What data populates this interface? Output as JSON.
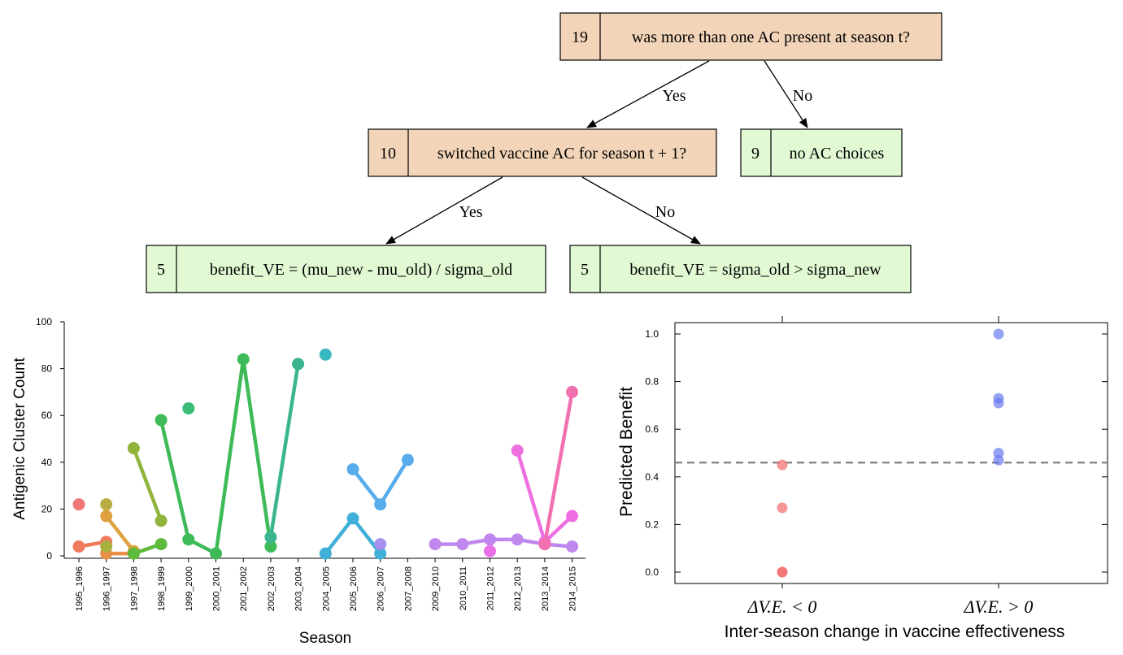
{
  "tree": {
    "root": {
      "count": "19",
      "text": "was more than one AC present at season t?",
      "fill": "#f2d4b8"
    },
    "switched": {
      "count": "10",
      "text": "switched vaccine AC for season t + 1?",
      "fill": "#f2d4b8"
    },
    "no_choices": {
      "count": "9",
      "text": "no AC choices",
      "fill": "#e2fad4"
    },
    "leaf_yes": {
      "count": "5",
      "text": "benefit_VE = (mu_new - mu_old) / sigma_old",
      "fill": "#e2fad4"
    },
    "leaf_no": {
      "count": "5",
      "text": "benefit_VE = sigma_old > sigma_new",
      "fill": "#e2fad4"
    },
    "edge_labels": {
      "yes1": "Yes",
      "no1": "No",
      "yes2": "Yes",
      "no2": "No"
    }
  },
  "chart_data": [
    {
      "type": "line",
      "xlabel": "Season",
      "ylabel": "Antigenic Cluster Count",
      "ylim": [
        0,
        100
      ],
      "yticks": [
        0,
        20,
        40,
        60,
        80,
        100
      ],
      "categories": [
        "1995_1996",
        "1996_1997",
        "1997_1998",
        "1998_1999",
        "1999_2000",
        "2000_2001",
        "2001_2002",
        "2002_2003",
        "2003_2004",
        "2004_2005",
        "2005_2006",
        "2006_2007",
        "2007_2008",
        "2009_2010",
        "2010_2011",
        "2011_2012",
        "2012_2013",
        "2013_2014",
        "2014_2015"
      ],
      "series": [
        {
          "color": "#f07878",
          "points": [
            [
              0,
              22
            ]
          ]
        },
        {
          "color": "#f07a5c",
          "points": [
            [
              0,
              4
            ],
            [
              1,
              6
            ]
          ]
        },
        {
          "color": "#e8904a",
          "points": [
            [
              1,
              1
            ],
            [
              2,
              1
            ]
          ]
        },
        {
          "color": "#dfa040",
          "points": [
            [
              1,
              17
            ],
            [
              2,
              2
            ]
          ]
        },
        {
          "color": "#b8ad40",
          "points": [
            [
              1,
              22
            ]
          ]
        },
        {
          "color": "#a8b040",
          "points": [
            [
              1,
              4
            ]
          ]
        },
        {
          "color": "#90b43c",
          "points": [
            [
              2,
              46
            ],
            [
              3,
              15
            ]
          ]
        },
        {
          "color": "#5cba3c",
          "points": [
            [
              2,
              1
            ],
            [
              3,
              5
            ]
          ]
        },
        {
          "color": "#3ebb58",
          "points": [
            [
              3,
              58
            ],
            [
              4,
              7
            ],
            [
              5,
              1
            ],
            [
              6,
              84
            ],
            [
              7,
              4
            ]
          ]
        },
        {
          "color": "#3abb78",
          "points": [
            [
              4,
              63
            ]
          ]
        },
        {
          "color": "#3ab590",
          "points": [
            [
              7,
              8
            ],
            [
              8,
              82
            ]
          ]
        },
        {
          "color": "#3ab8c0",
          "points": [
            [
              9,
              86
            ]
          ]
        },
        {
          "color": "#40b0d8",
          "points": [
            [
              9,
              1
            ],
            [
              10,
              16
            ],
            [
              11,
              1
            ]
          ]
        },
        {
          "color": "#58acec",
          "points": [
            [
              10,
              37
            ],
            [
              11,
              22
            ],
            [
              12,
              41
            ]
          ]
        },
        {
          "color": "#a890ee",
          "points": [
            [
              11,
              5
            ]
          ]
        },
        {
          "color": "#c088ee",
          "points": [
            [
              13,
              5
            ],
            [
              14,
              5
            ],
            [
              15,
              7
            ],
            [
              16,
              7
            ],
            [
              17,
              5
            ],
            [
              18,
              4
            ]
          ]
        },
        {
          "color": "#ea70ea",
          "points": [
            [
              15,
              2
            ]
          ]
        },
        {
          "color": "#ee70e0",
          "points": [
            [
              16,
              45
            ],
            [
              17,
              6
            ],
            [
              18,
              17
            ]
          ]
        },
        {
          "color": "#f070b0",
          "points": [
            [
              17,
              5
            ],
            [
              18,
              70
            ]
          ]
        }
      ]
    },
    {
      "type": "scatter",
      "xlabel": "Inter-season change in vaccine effectiveness",
      "ylabel": "Predicted Benefit",
      "ylim": [
        -0.05,
        1.05
      ],
      "yticks": [
        0.0,
        0.2,
        0.4,
        0.6,
        0.8,
        1.0
      ],
      "categories": [
        "ΔV.E. < 0",
        "ΔV.E. > 0"
      ],
      "threshold": 0.46,
      "series": [
        {
          "category": 0,
          "color": "#f26a6a",
          "values": [
            0.45,
            0.27,
            0.0,
            0.0
          ]
        },
        {
          "category": 1,
          "color": "#6a7af0",
          "values": [
            1.0,
            0.73,
            0.71,
            0.5,
            0.47
          ]
        }
      ]
    }
  ]
}
